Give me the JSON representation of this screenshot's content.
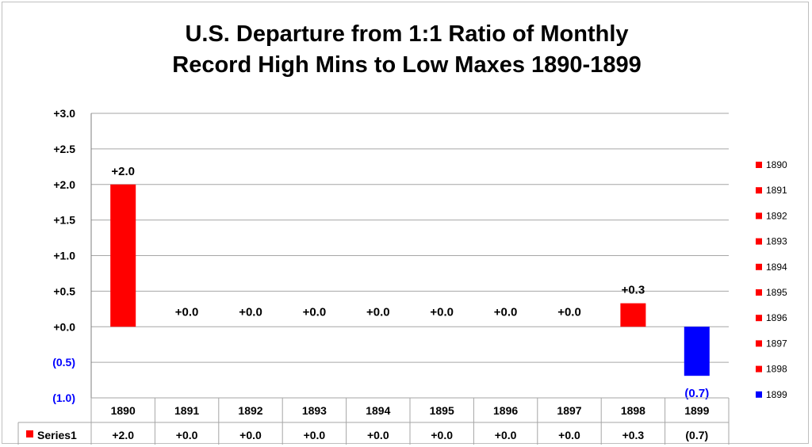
{
  "chart_data": {
    "type": "bar",
    "title": [
      "U.S. Departure from 1:1 Ratio of Monthly",
      "Record High Mins to Low Maxes 1890-1899"
    ],
    "categories": [
      "1890",
      "1891",
      "1892",
      "1893",
      "1894",
      "1895",
      "1896",
      "1897",
      "1898",
      "1899"
    ],
    "series": [
      {
        "name": "Series1",
        "values": [
          2.0,
          0.0,
          0.0,
          0.0,
          0.0,
          0.0,
          0.0,
          0.0,
          0.33,
          -0.69
        ],
        "labels": [
          "+2.0",
          "+0.0",
          "+0.0",
          "+0.0",
          "+0.0",
          "+0.0",
          "+0.0",
          "+0.0",
          "+0.3",
          "(0.7)"
        ]
      }
    ],
    "ylim": [
      -1.0,
      3.0
    ],
    "yticks": [
      3.0,
      2.5,
      2.0,
      1.5,
      1.0,
      0.5,
      0.0,
      -0.5,
      -1.0
    ],
    "ytick_labels": [
      "+3.0",
      "+2.5",
      "+2.0",
      "+1.5",
      "+1.0",
      "+0.5",
      "+0.0",
      "(0.5)",
      "(1.0)"
    ],
    "grid": true,
    "legend": {
      "placement": "right",
      "entries": [
        "1890",
        "1891",
        "1892",
        "1893",
        "1894",
        "1895",
        "1896",
        "1897",
        "1898",
        "1899"
      ]
    },
    "data_table": {
      "row_label": "Series1",
      "values": [
        "+2.0",
        "+0.0",
        "+0.0",
        "+0.0",
        "+0.0",
        "+0.0",
        "+0.0",
        "+0.0",
        "+0.3",
        "(0.7)"
      ]
    },
    "colors": {
      "positive": "#ff0000",
      "negative": "#0000ff",
      "negative_label": "#0000ff",
      "grid": "#a6a6a6",
      "axis": "#7f7f7f"
    }
  }
}
